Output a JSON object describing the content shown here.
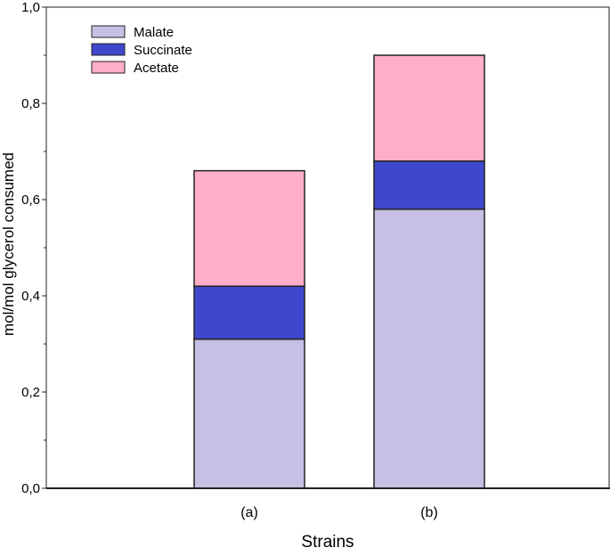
{
  "chart_data": {
    "type": "bar",
    "stacked": true,
    "title": "",
    "xlabel": "Strains",
    "ylabel": "mol/mol glycerol consumed",
    "categories": [
      "(a)",
      "(b)"
    ],
    "series": [
      {
        "name": "Malate",
        "values": [
          0.31,
          0.58
        ],
        "color": "#c6c0e4"
      },
      {
        "name": "Succinate",
        "values": [
          0.11,
          0.1
        ],
        "color": "#3f48cc"
      },
      {
        "name": "Acetate",
        "values": [
          0.24,
          0.22
        ],
        "color": "#ffaec9"
      }
    ],
    "ylim": [
      0,
      1.0
    ],
    "yticks": [
      "0,0",
      "0,2",
      "0,4",
      "0,6",
      "0,8",
      "1,0"
    ],
    "grid": false,
    "legend_position": "top-left"
  }
}
